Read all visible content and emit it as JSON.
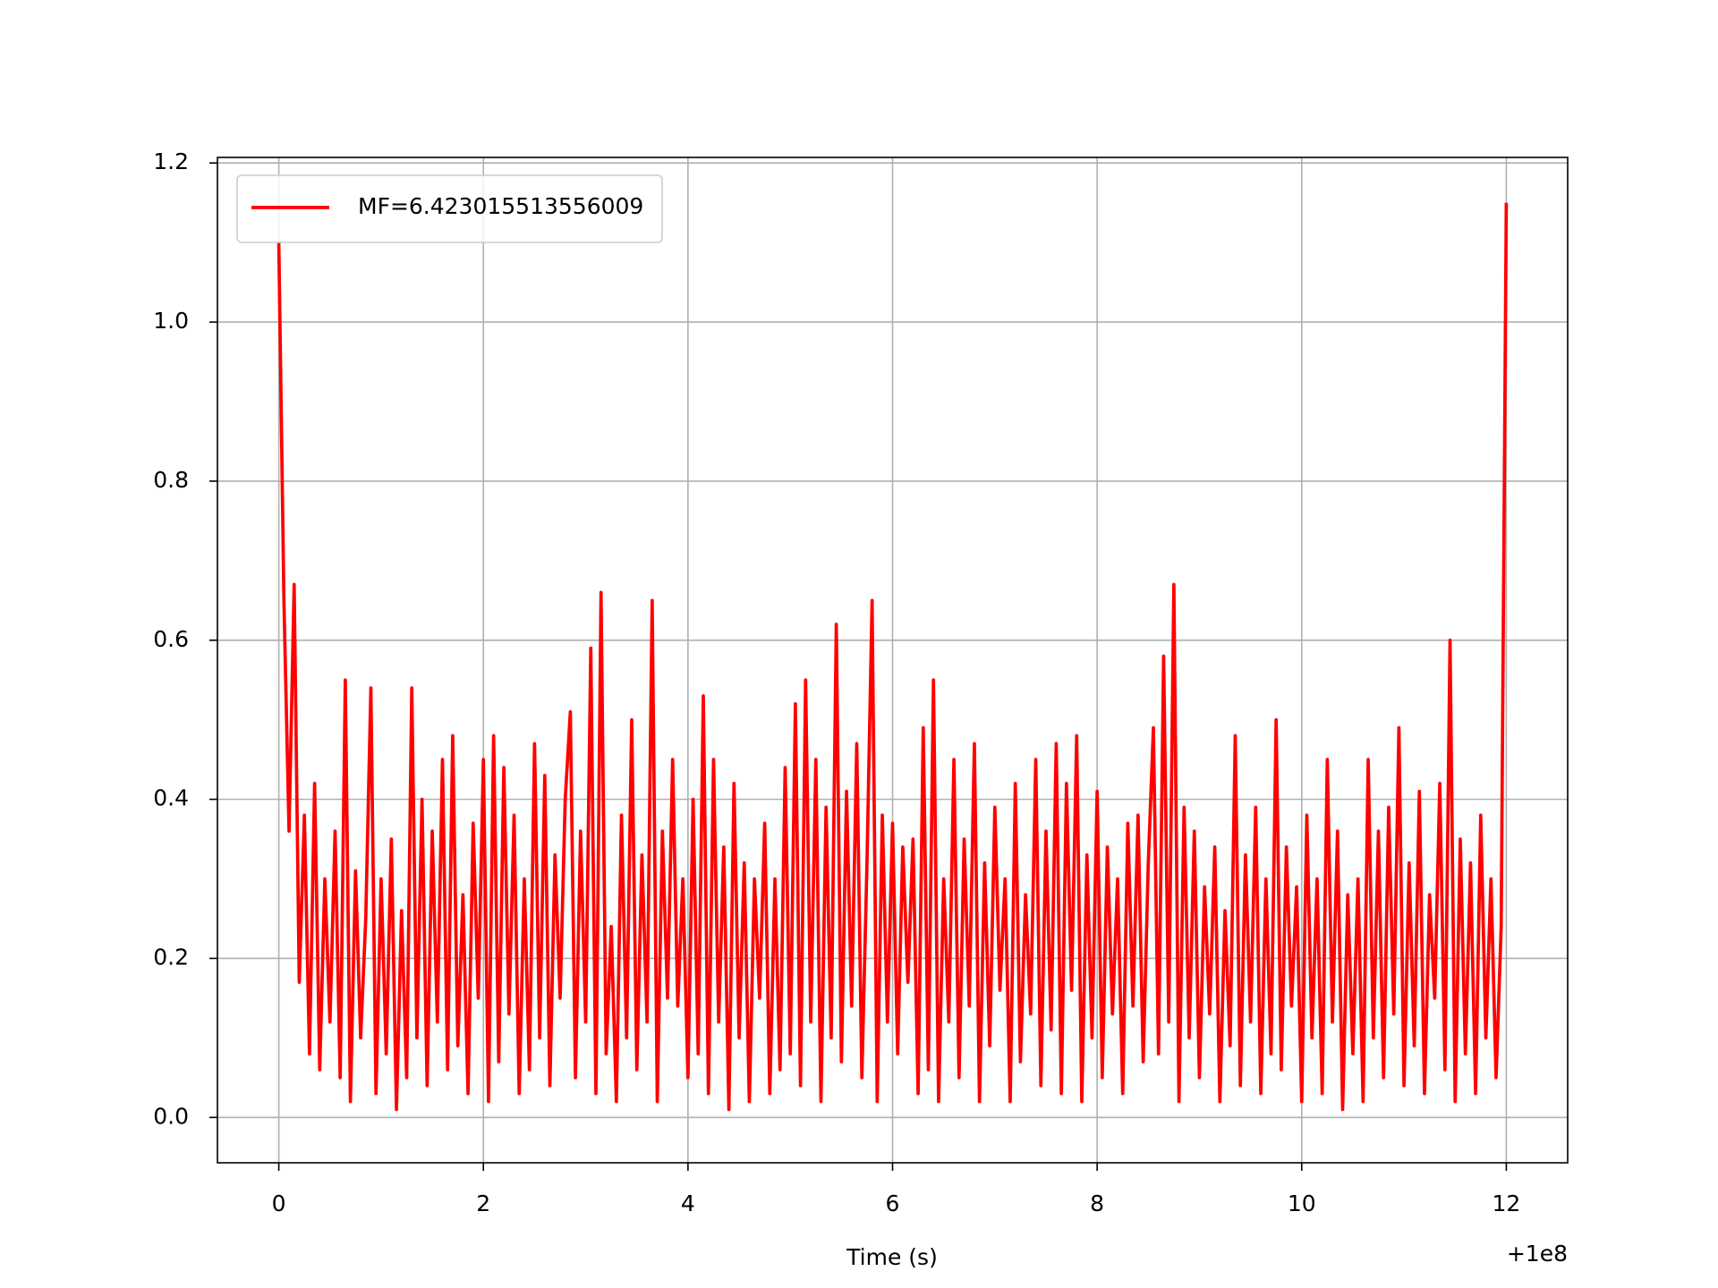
{
  "chart_data": {
    "type": "line",
    "xlabel": "Time (s)",
    "x_offset_label": "+1e8",
    "x": [
      0,
      0.05,
      0.1,
      0.15,
      0.2,
      0.25,
      0.3,
      0.35,
      0.4,
      0.45,
      0.5,
      0.55,
      0.6,
      0.65,
      0.7,
      0.75,
      0.8,
      0.85,
      0.9,
      0.95,
      1,
      1.05,
      1.1,
      1.15,
      1.2,
      1.25,
      1.3,
      1.35,
      1.4,
      1.45,
      1.5,
      1.55,
      1.6,
      1.65,
      1.7,
      1.75,
      1.8,
      1.85,
      1.9,
      1.95,
      2,
      2.05,
      2.1,
      2.15,
      2.2,
      2.25,
      2.3,
      2.35,
      2.4,
      2.45,
      2.5,
      2.55,
      2.6,
      2.65,
      2.7,
      2.75,
      2.8,
      2.85,
      2.9,
      2.95,
      3,
      3.05,
      3.1,
      3.15,
      3.2,
      3.25,
      3.3,
      3.35,
      3.4,
      3.45,
      3.5,
      3.55,
      3.6,
      3.65,
      3.7,
      3.75,
      3.8,
      3.85,
      3.9,
      3.95,
      4,
      4.05,
      4.1,
      4.15,
      4.2,
      4.25,
      4.3,
      4.35,
      4.4,
      4.45,
      4.5,
      4.55,
      4.6,
      4.65,
      4.7,
      4.75,
      4.8,
      4.85,
      4.9,
      4.95,
      5,
      5.05,
      5.1,
      5.15,
      5.2,
      5.25,
      5.3,
      5.35,
      5.4,
      5.45,
      5.5,
      5.55,
      5.6,
      5.65,
      5.7,
      5.75,
      5.8,
      5.85,
      5.9,
      5.95,
      6,
      6.05,
      6.1,
      6.15,
      6.2,
      6.25,
      6.3,
      6.35,
      6.4,
      6.45,
      6.5,
      6.55,
      6.6,
      6.65,
      6.7,
      6.75,
      6.8,
      6.85,
      6.9,
      6.95,
      7,
      7.05,
      7.1,
      7.15,
      7.2,
      7.25,
      7.3,
      7.35,
      7.4,
      7.45,
      7.5,
      7.55,
      7.6,
      7.65,
      7.7,
      7.75,
      7.8,
      7.85,
      7.9,
      7.95,
      8,
      8.05,
      8.1,
      8.15,
      8.2,
      8.25,
      8.3,
      8.35,
      8.4,
      8.45,
      8.5,
      8.55,
      8.6,
      8.65,
      8.7,
      8.75,
      8.8,
      8.85,
      8.9,
      8.95,
      9,
      9.05,
      9.1,
      9.15,
      9.2,
      9.25,
      9.3,
      9.35,
      9.4,
      9.45,
      9.5,
      9.55,
      9.6,
      9.65,
      9.7,
      9.75,
      9.8,
      9.85,
      9.9,
      9.95,
      10,
      10.05,
      10.1,
      10.15,
      10.2,
      10.25,
      10.3,
      10.35,
      10.4,
      10.45,
      10.5,
      10.55,
      10.6,
      10.65,
      10.7,
      10.75,
      10.8,
      10.85,
      10.9,
      10.95,
      11,
      11.05,
      11.1,
      11.15,
      11.2,
      11.25,
      11.3,
      11.35,
      11.4,
      11.45,
      11.5,
      11.55,
      11.6,
      11.65,
      11.7,
      11.75,
      11.8,
      11.85,
      11.9,
      11.95,
      12
    ],
    "series": [
      {
        "name": "MF=6.423015513556009",
        "color": "#ff0000",
        "values": [
          1.1,
          0.65,
          0.36,
          0.67,
          0.17,
          0.38,
          0.08,
          0.42,
          0.06,
          0.3,
          0.12,
          0.36,
          0.05,
          0.55,
          0.02,
          0.31,
          0.1,
          0.25,
          0.54,
          0.03,
          0.3,
          0.08,
          0.35,
          0.01,
          0.26,
          0.05,
          0.54,
          0.1,
          0.4,
          0.04,
          0.36,
          0.12,
          0.45,
          0.06,
          0.48,
          0.09,
          0.28,
          0.03,
          0.37,
          0.15,
          0.45,
          0.02,
          0.48,
          0.07,
          0.44,
          0.13,
          0.38,
          0.03,
          0.3,
          0.06,
          0.47,
          0.1,
          0.43,
          0.04,
          0.33,
          0.15,
          0.4,
          0.51,
          0.05,
          0.36,
          0.12,
          0.59,
          0.03,
          0.66,
          0.08,
          0.24,
          0.02,
          0.38,
          0.1,
          0.5,
          0.06,
          0.33,
          0.12,
          0.65,
          0.02,
          0.36,
          0.15,
          0.45,
          0.14,
          0.3,
          0.05,
          0.4,
          0.08,
          0.53,
          0.03,
          0.45,
          0.12,
          0.34,
          0.01,
          0.42,
          0.1,
          0.32,
          0.02,
          0.3,
          0.15,
          0.37,
          0.03,
          0.3,
          0.06,
          0.44,
          0.08,
          0.52,
          0.04,
          0.55,
          0.12,
          0.45,
          0.02,
          0.39,
          0.1,
          0.62,
          0.07,
          0.41,
          0.14,
          0.47,
          0.05,
          0.32,
          0.65,
          0.02,
          0.38,
          0.12,
          0.37,
          0.08,
          0.34,
          0.17,
          0.35,
          0.03,
          0.49,
          0.06,
          0.55,
          0.02,
          0.3,
          0.12,
          0.45,
          0.05,
          0.35,
          0.14,
          0.47,
          0.02,
          0.32,
          0.09,
          0.39,
          0.16,
          0.3,
          0.02,
          0.42,
          0.07,
          0.28,
          0.13,
          0.45,
          0.04,
          0.36,
          0.11,
          0.47,
          0.03,
          0.42,
          0.16,
          0.48,
          0.02,
          0.33,
          0.1,
          0.41,
          0.05,
          0.34,
          0.13,
          0.3,
          0.03,
          0.37,
          0.14,
          0.38,
          0.07,
          0.32,
          0.49,
          0.08,
          0.58,
          0.12,
          0.67,
          0.02,
          0.39,
          0.1,
          0.36,
          0.05,
          0.29,
          0.13,
          0.34,
          0.02,
          0.26,
          0.09,
          0.48,
          0.04,
          0.33,
          0.12,
          0.39,
          0.03,
          0.3,
          0.08,
          0.5,
          0.06,
          0.34,
          0.14,
          0.29,
          0.02,
          0.38,
          0.1,
          0.3,
          0.03,
          0.45,
          0.12,
          0.36,
          0.01,
          0.28,
          0.08,
          0.3,
          0.02,
          0.45,
          0.1,
          0.36,
          0.05,
          0.39,
          0.13,
          0.49,
          0.04,
          0.32,
          0.09,
          0.41,
          0.03,
          0.28,
          0.15,
          0.42,
          0.06,
          0.6,
          0.02,
          0.35,
          0.08,
          0.32,
          0.03,
          0.38,
          0.1,
          0.3,
          0.05,
          0.24,
          1.15
        ]
      }
    ],
    "xlim": [
      -0.6,
      12.6
    ],
    "xticks": [
      0,
      2,
      4,
      6,
      8,
      10,
      12
    ],
    "ylim": [
      -0.057,
      1.207
    ],
    "yticks": [
      {
        "value": 0,
        "label": "0.0"
      },
      0.2,
      0.4,
      0.6,
      0.8,
      {
        "value": 1,
        "label": "1.0"
      },
      1.2
    ],
    "grid": true,
    "legend": "upper left"
  }
}
